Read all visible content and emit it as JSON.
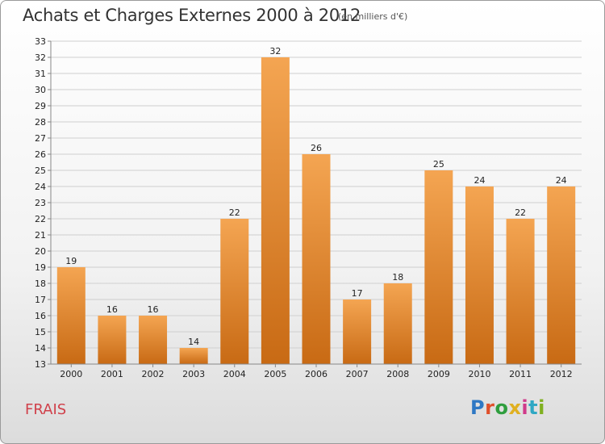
{
  "header": {
    "title": "Achats et Charges Externes 2000 à 2012",
    "unit": "(en milliers d'€)"
  },
  "footer": {
    "city": "FRAIS",
    "logo": "Proxiti",
    "logo_colors": [
      "#2f78c4",
      "#e0502a",
      "#2f9e3e",
      "#e0b020",
      "#d03a8a",
      "#2fa8c4",
      "#80b020"
    ]
  },
  "colors": {
    "bar_top": "#f4a552",
    "bar_bottom": "#c86a14",
    "grid": "#cfcfcf",
    "axis": "#888888"
  },
  "chart_data": {
    "type": "bar",
    "title": "Achats et Charges Externes 2000 à 2012",
    "subtitle": "(en milliers d'€)",
    "categories": [
      "2000",
      "2001",
      "2002",
      "2003",
      "2004",
      "2005",
      "2006",
      "2007",
      "2008",
      "2009",
      "2010",
      "2011",
      "2012"
    ],
    "values": [
      19,
      16,
      16,
      14,
      22,
      32,
      26,
      17,
      18,
      25,
      24,
      22,
      24
    ],
    "value_labels": [
      "19",
      "16",
      "16",
      "14",
      "22",
      "32",
      "26",
      "17",
      "18",
      "25",
      "24",
      "22",
      "24"
    ],
    "ylim": [
      13,
      33
    ],
    "yticks": [
      "13",
      "14",
      "15",
      "16",
      "17",
      "18",
      "19",
      "20",
      "21",
      "22",
      "23",
      "24",
      "25",
      "26",
      "27",
      "28",
      "29",
      "30",
      "31",
      "32",
      "33"
    ],
    "grid": true,
    "legend": "none"
  }
}
